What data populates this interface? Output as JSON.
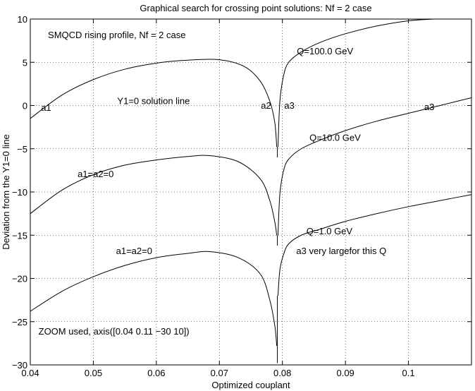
{
  "chart_data": {
    "type": "line",
    "title": "Graphical search for crossing point solutions: Nf = 2 case",
    "xlabel": "Optimized couplant",
    "ylabel": "Deviation from the Y1=0 line",
    "xlim": [
      0.04,
      0.11
    ],
    "ylim": [
      -30,
      10
    ],
    "grid": true,
    "x_ticks": [
      0.04,
      0.05,
      0.06,
      0.07,
      0.08,
      0.09,
      0.1
    ],
    "x_tick_labels": [
      "0.04",
      "0.05",
      "0.06",
      "0.07",
      "0.08",
      "0.09",
      "0.1"
    ],
    "y_ticks": [
      10,
      5,
      0,
      -5,
      -10,
      -15,
      -20,
      -25,
      -30
    ],
    "y_tick_labels": [
      "10",
      "5",
      "0",
      "−5",
      "−10",
      "−15",
      "−20",
      "−25",
      "−30"
    ],
    "singularity_x": 0.0792,
    "series": [
      {
        "name": "Q=100.0 GeV",
        "left": {
          "x": [
            0.04,
            0.045,
            0.05,
            0.055,
            0.06,
            0.065,
            0.07,
            0.074,
            0.0765,
            0.078,
            0.0788,
            0.0791
          ],
          "y": [
            -1.5,
            1.2,
            3.0,
            4.2,
            4.9,
            5.25,
            5.3,
            4.5,
            2.8,
            0.5,
            -2.0,
            -4.8
          ]
        },
        "right": {
          "x": [
            0.0793,
            0.0796,
            0.0802,
            0.081,
            0.083,
            0.086,
            0.09,
            0.095,
            0.1,
            0.104
          ],
          "y": [
            -4.8,
            0.5,
            3.5,
            5.0,
            6.2,
            7.3,
            8.3,
            9.2,
            9.8,
            10.0
          ]
        }
      },
      {
        "name": "Q=10.0 GeV",
        "left": {
          "x": [
            0.04,
            0.045,
            0.05,
            0.055,
            0.06,
            0.065,
            0.0685,
            0.073,
            0.0765,
            0.078,
            0.0788,
            0.0791
          ],
          "y": [
            -12.5,
            -9.8,
            -8.0,
            -6.9,
            -6.3,
            -5.9,
            -5.8,
            -6.5,
            -8.5,
            -11.0,
            -13.5,
            -15.0
          ]
        },
        "right": {
          "x": [
            0.0793,
            0.0796,
            0.0802,
            0.081,
            0.083,
            0.086,
            0.09,
            0.095,
            0.1,
            0.105,
            0.11
          ],
          "y": [
            -15.0,
            -10.2,
            -7.5,
            -6.2,
            -5.0,
            -4.0,
            -2.9,
            -1.8,
            -0.9,
            0.0,
            0.9
          ]
        }
      },
      {
        "name": "Q=1.0 GeV",
        "left": {
          "x": [
            0.04,
            0.045,
            0.05,
            0.055,
            0.06,
            0.065,
            0.0685,
            0.073,
            0.0765,
            0.078,
            0.0788,
            0.0791
          ],
          "y": [
            -23.8,
            -21.5,
            -19.8,
            -18.5,
            -17.6,
            -17.1,
            -16.9,
            -17.6,
            -19.5,
            -22.5,
            -25.5,
            -27.8
          ]
        },
        "right": {
          "x": [
            0.0793,
            0.0796,
            0.0802,
            0.081,
            0.083,
            0.086,
            0.09,
            0.095,
            0.1,
            0.105,
            0.11
          ],
          "y": [
            -22.0,
            -19.0,
            -17.2,
            -16.0,
            -15.0,
            -14.3,
            -13.4,
            -12.5,
            -11.7,
            -11.0,
            -10.3
          ]
        }
      }
    ],
    "annotations": [
      {
        "text": "SMQCD rising profile, Nf = 2 case",
        "x": 0.0428,
        "y": 7.8
      },
      {
        "text": "Q=100.0 GeV",
        "x": 0.0823,
        "y": 5.9
      },
      {
        "text": "a1",
        "x": 0.0417,
        "y": -0.6
      },
      {
        "text": "Y1=0 solution line",
        "x": 0.0538,
        "y": 0.15
      },
      {
        "text": "a2",
        "x": 0.0766,
        "y": -0.35
      },
      {
        "text": "a3",
        "x": 0.0803,
        "y": -0.35
      },
      {
        "text": "a3",
        "x": 0.1025,
        "y": -0.55
      },
      {
        "text": "Q=10.0 GeV",
        "x": 0.0843,
        "y": -4.1
      },
      {
        "text": "a1=a2=0",
        "x": 0.0475,
        "y": -8.3
      },
      {
        "text": "Q=1.0 GeV",
        "x": 0.0838,
        "y": -14.9
      },
      {
        "text": "a1=a2=0",
        "x": 0.0536,
        "y": -17.2
      },
      {
        "text": "a3 very largefor this Q",
        "x": 0.0822,
        "y": -17.2
      },
      {
        "text": "ZOOM used, axis([0.04 0.11 −30 10])",
        "x": 0.0413,
        "y": -26.5
      }
    ]
  }
}
